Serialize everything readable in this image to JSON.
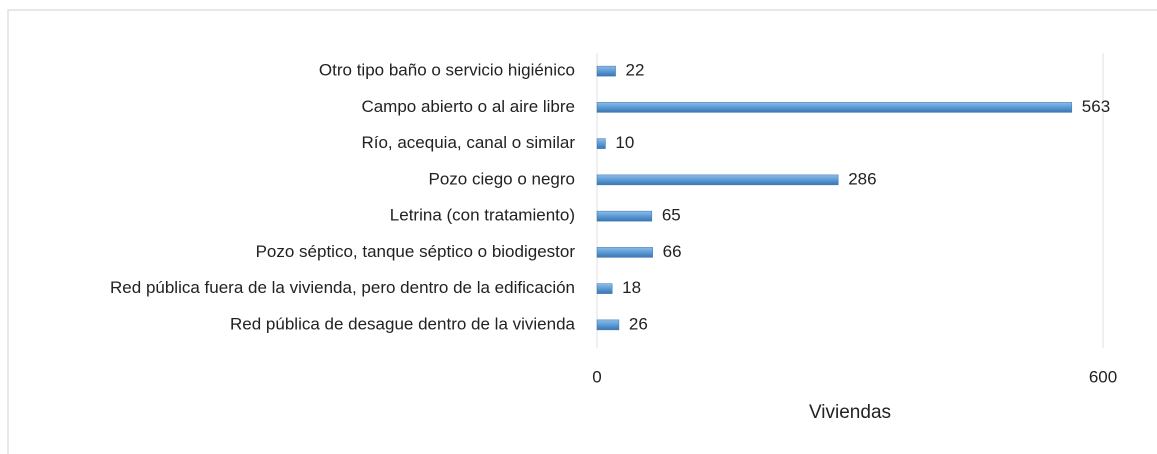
{
  "chart_data": {
    "type": "barh",
    "categories": [
      "Otro tipo baño o servicio higiénico",
      "Campo abierto o al aire libre",
      "Río, acequia, canal o similar",
      "Pozo ciego o negro",
      "Letrina (con tratamiento)",
      "Pozo séptico, tanque séptico o biodigestor",
      "Red pública fuera de la vivienda, pero dentro de la edificación",
      "Red pública de desague dentro de la vivienda"
    ],
    "values": [
      22,
      563,
      10,
      286,
      65,
      66,
      18,
      26
    ],
    "color": "#5b9bd5",
    "xlabel": "Viviendas",
    "xlim": [
      0,
      600
    ],
    "xticks": [
      0,
      600
    ],
    "grid": true
  }
}
